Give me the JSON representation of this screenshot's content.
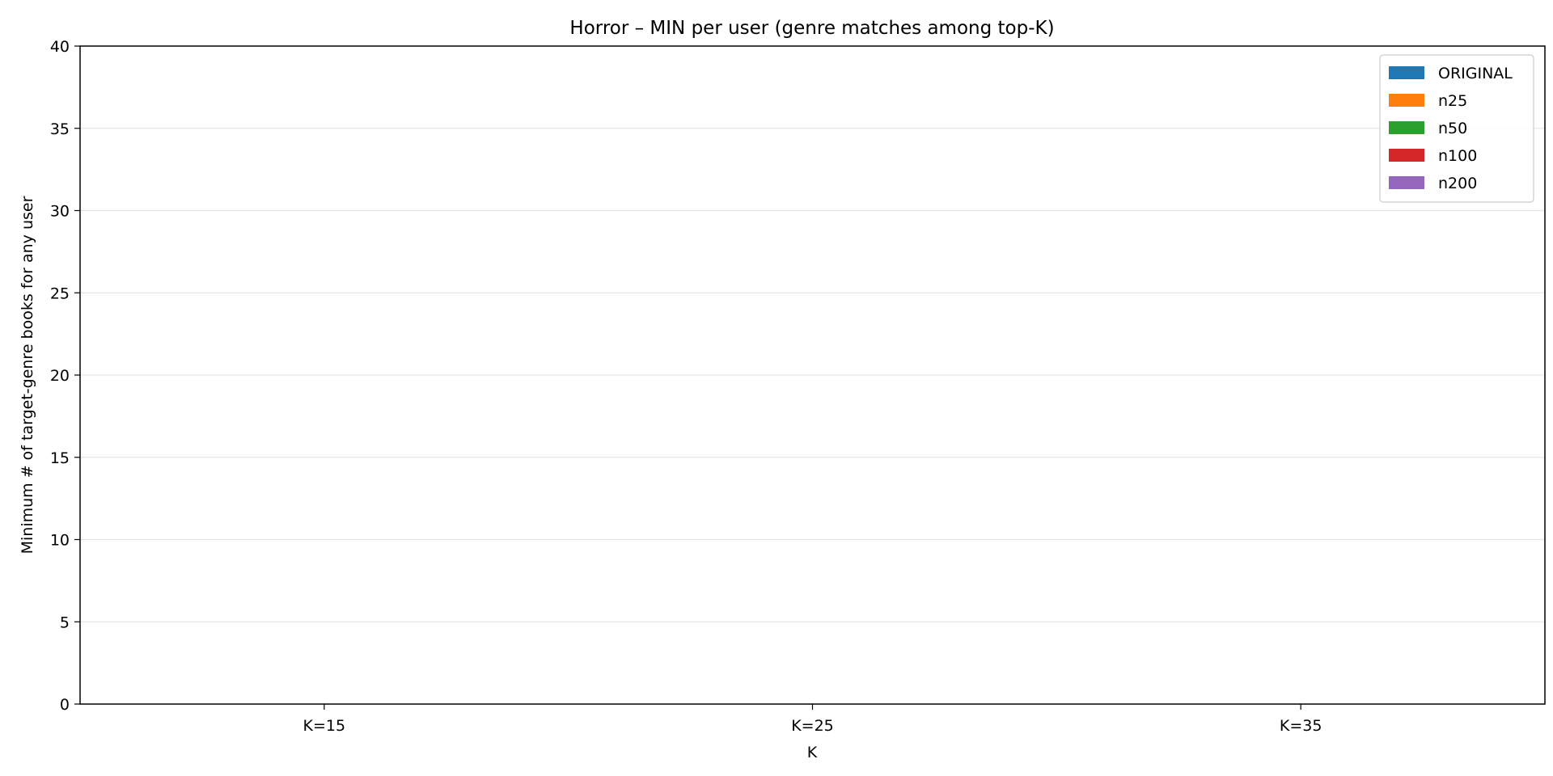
{
  "chart_data": {
    "type": "bar",
    "title": "Horror – MIN per user (genre matches among top-K)",
    "xlabel": "K",
    "ylabel": "Minimum # of target-genre books for any user",
    "categories": [
      "K=15",
      "K=25",
      "K=35"
    ],
    "ylim": [
      0,
      40
    ],
    "yticks": [
      0,
      5,
      10,
      15,
      20,
      25,
      30,
      35,
      40
    ],
    "grid": "horizontal",
    "legend_position": "top-right",
    "series": [
      {
        "name": "ORIGINAL",
        "color": "#1f77b4",
        "values": [
          0,
          0,
          0
        ]
      },
      {
        "name": "n25",
        "color": "#ff7f0e",
        "values": [
          0,
          0,
          0
        ]
      },
      {
        "name": "n50",
        "color": "#2ca02c",
        "values": [
          0,
          0,
          0
        ]
      },
      {
        "name": "n100",
        "color": "#d62728",
        "values": [
          0,
          0,
          0
        ]
      },
      {
        "name": "n200",
        "color": "#9467bd",
        "values": [
          0,
          0,
          0
        ]
      }
    ]
  }
}
